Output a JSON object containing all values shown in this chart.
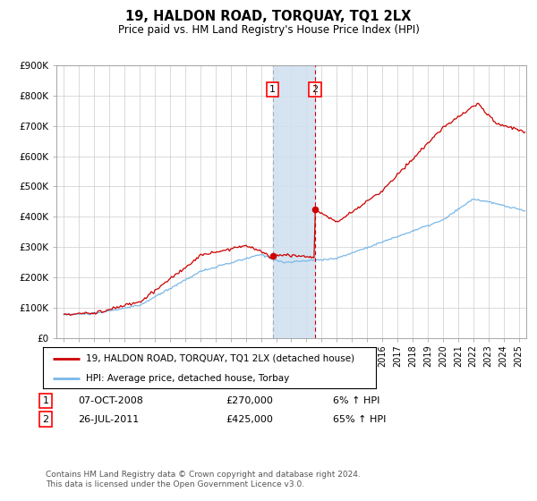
{
  "title": "19, HALDON ROAD, TORQUAY, TQ1 2LX",
  "subtitle": "Price paid vs. HM Land Registry's House Price Index (HPI)",
  "sale1_date_label": "07-OCT-2008",
  "sale1_price": 270000,
  "sale1_year": 2008.77,
  "sale2_date_label": "26-JUL-2011",
  "sale2_price": 425000,
  "sale2_year": 2011.56,
  "hpi_color": "#7ab8e8",
  "property_color": "#cc0000",
  "legend_label1": "19, HALDON ROAD, TORQUAY, TQ1 2LX (detached house)",
  "legend_label2": "HPI: Average price, detached house, Torbay",
  "footer": "Contains HM Land Registry data © Crown copyright and database right 2024.\nThis data is licensed under the Open Government Licence v3.0.",
  "ylim": [
    0,
    900000
  ],
  "xlim_start": 1994.5,
  "xlim_end": 2025.5,
  "background_color": "#ffffff",
  "grid_color": "#cccccc",
  "table_row1": [
    "1",
    "07-OCT-2008",
    "£270,000",
    "6% ↑ HPI"
  ],
  "table_row2": [
    "2",
    "26-JUL-2011",
    "£425,000",
    "65% ↑ HPI"
  ]
}
